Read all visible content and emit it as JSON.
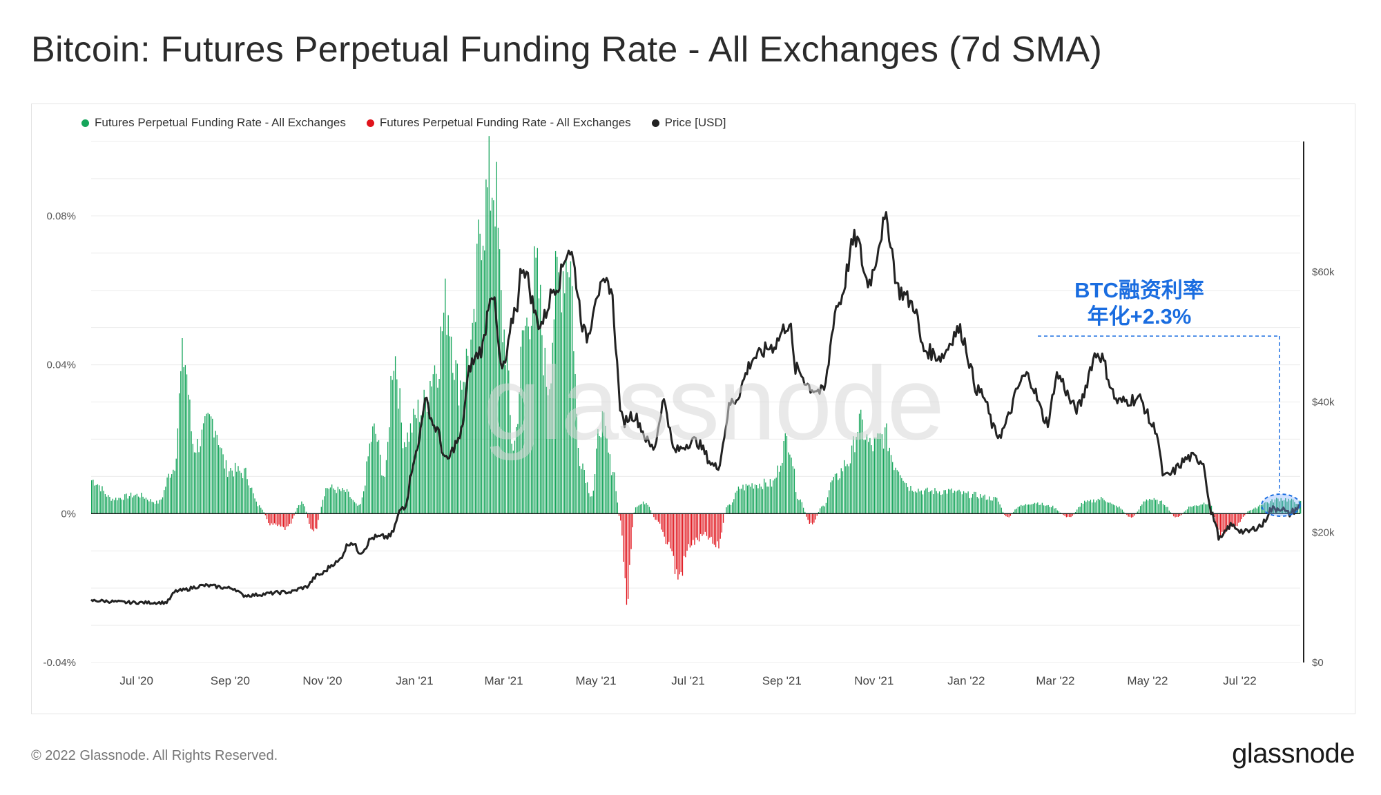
{
  "title": "Bitcoin: Futures Perpetual Funding Rate - All Exchanges (7d SMA)",
  "footer": "© 2022 Glassnode. All Rights Reserved.",
  "brand": "glassnode",
  "watermark": "glassnode",
  "annotation": {
    "line1": "BTC融资利率",
    "line2": "年化+2.3%",
    "color": "#1a6de0"
  },
  "colors": {
    "positive": "#16a55b",
    "negative": "#e0141c",
    "price": "#222222",
    "annotation": "#1a6de0"
  },
  "chart_data": {
    "type": "bar",
    "legend": [
      {
        "name": "Futures Perpetual Funding Rate - All Exchanges",
        "color": "#16a55b"
      },
      {
        "name": "Futures Perpetual Funding Rate - All Exchanges",
        "color": "#e0141c"
      },
      {
        "name": "Price [USD]",
        "color": "#222222"
      }
    ],
    "legend_position": "top-left",
    "y_left": {
      "ticks": [
        "0.08%",
        "0.04%",
        "0%",
        "-0.04%"
      ],
      "tick_values": [
        0.08,
        0.04,
        0,
        -0.04
      ],
      "range": [
        -0.04,
        0.1
      ]
    },
    "y_right": {
      "ticks": [
        "$60k",
        "$40k",
        "$20k",
        "$0"
      ],
      "tick_values": [
        60000,
        40000,
        20000,
        0
      ],
      "range": [
        0,
        80000
      ]
    },
    "x_ticks": [
      "Jul '20",
      "Sep '20",
      "Nov '20",
      "Jan '21",
      "Mar '21",
      "May '21",
      "Jul '21",
      "Sep '21",
      "Nov '21",
      "Jan '22",
      "Mar '22",
      "May '22",
      "Jul '22"
    ],
    "x_range": [
      "2020-06-01",
      "2022-08-10"
    ],
    "grid": true,
    "funding_rate_anchors": [
      {
        "x": "2020-06-01",
        "y": 0.009
      },
      {
        "x": "2020-06-15",
        "y": 0.004
      },
      {
        "x": "2020-07-01",
        "y": 0.005
      },
      {
        "x": "2020-07-15",
        "y": 0.003
      },
      {
        "x": "2020-07-25",
        "y": 0.012
      },
      {
        "x": "2020-08-01",
        "y": 0.042
      },
      {
        "x": "2020-08-08",
        "y": 0.018
      },
      {
        "x": "2020-08-20",
        "y": 0.025
      },
      {
        "x": "2020-08-30",
        "y": 0.012
      },
      {
        "x": "2020-09-10",
        "y": 0.011
      },
      {
        "x": "2020-09-20",
        "y": 0.002
      },
      {
        "x": "2020-09-28",
        "y": -0.003
      },
      {
        "x": "2020-10-08",
        "y": -0.004
      },
      {
        "x": "2020-10-18",
        "y": 0.003
      },
      {
        "x": "2020-10-26",
        "y": -0.005
      },
      {
        "x": "2020-11-04",
        "y": 0.007
      },
      {
        "x": "2020-11-15",
        "y": 0.006
      },
      {
        "x": "2020-11-25",
        "y": 0.002
      },
      {
        "x": "2020-12-05",
        "y": 0.022
      },
      {
        "x": "2020-12-12",
        "y": 0.01
      },
      {
        "x": "2020-12-18",
        "y": 0.043
      },
      {
        "x": "2020-12-25",
        "y": 0.02
      },
      {
        "x": "2021-01-05",
        "y": 0.028
      },
      {
        "x": "2021-01-15",
        "y": 0.04
      },
      {
        "x": "2021-01-22",
        "y": 0.056
      },
      {
        "x": "2021-01-30",
        "y": 0.035
      },
      {
        "x": "2021-02-08",
        "y": 0.045
      },
      {
        "x": "2021-02-14",
        "y": 0.08
      },
      {
        "x": "2021-02-22",
        "y": 0.09
      },
      {
        "x": "2021-03-01",
        "y": 0.048
      },
      {
        "x": "2021-03-07",
        "y": 0.018
      },
      {
        "x": "2021-03-15",
        "y": 0.05
      },
      {
        "x": "2021-03-22",
        "y": 0.063
      },
      {
        "x": "2021-03-30",
        "y": 0.035
      },
      {
        "x": "2021-04-05",
        "y": 0.062
      },
      {
        "x": "2021-04-13",
        "y": 0.07
      },
      {
        "x": "2021-04-20",
        "y": 0.015
      },
      {
        "x": "2021-04-28",
        "y": 0.005
      },
      {
        "x": "2021-05-04",
        "y": 0.025
      },
      {
        "x": "2021-05-12",
        "y": 0.012
      },
      {
        "x": "2021-05-17",
        "y": -0.002
      },
      {
        "x": "2021-05-21",
        "y": -0.023
      },
      {
        "x": "2021-05-27",
        "y": 0.002
      },
      {
        "x": "2021-06-03",
        "y": 0.003
      },
      {
        "x": "2021-06-10",
        "y": -0.002
      },
      {
        "x": "2021-06-18",
        "y": -0.008
      },
      {
        "x": "2021-06-24",
        "y": -0.017
      },
      {
        "x": "2021-07-03",
        "y": -0.008
      },
      {
        "x": "2021-07-12",
        "y": -0.006
      },
      {
        "x": "2021-07-20",
        "y": -0.009
      },
      {
        "x": "2021-07-27",
        "y": 0.002
      },
      {
        "x": "2021-08-05",
        "y": 0.007
      },
      {
        "x": "2021-08-15",
        "y": 0.008
      },
      {
        "x": "2021-08-25",
        "y": 0.008
      },
      {
        "x": "2021-09-05",
        "y": 0.02
      },
      {
        "x": "2021-09-12",
        "y": 0.004
      },
      {
        "x": "2021-09-20",
        "y": -0.003
      },
      {
        "x": "2021-09-28",
        "y": 0.002
      },
      {
        "x": "2021-10-05",
        "y": 0.009
      },
      {
        "x": "2021-10-15",
        "y": 0.014
      },
      {
        "x": "2021-10-22",
        "y": 0.024
      },
      {
        "x": "2021-10-30",
        "y": 0.018
      },
      {
        "x": "2021-11-08",
        "y": 0.021
      },
      {
        "x": "2021-11-15",
        "y": 0.013
      },
      {
        "x": "2021-11-25",
        "y": 0.007
      },
      {
        "x": "2021-12-05",
        "y": 0.006
      },
      {
        "x": "2021-12-20",
        "y": 0.006
      },
      {
        "x": "2022-01-05",
        "y": 0.005
      },
      {
        "x": "2022-01-20",
        "y": 0.004
      },
      {
        "x": "2022-01-28",
        "y": -0.001
      },
      {
        "x": "2022-02-05",
        "y": 0.002
      },
      {
        "x": "2022-02-15",
        "y": 0.003
      },
      {
        "x": "2022-02-25",
        "y": 0.002
      },
      {
        "x": "2022-03-10",
        "y": -0.001
      },
      {
        "x": "2022-03-20",
        "y": 0.003
      },
      {
        "x": "2022-04-01",
        "y": 0.004
      },
      {
        "x": "2022-04-10",
        "y": 0.002
      },
      {
        "x": "2022-04-20",
        "y": -0.001
      },
      {
        "x": "2022-05-01",
        "y": 0.004
      },
      {
        "x": "2022-05-10",
        "y": 0.003
      },
      {
        "x": "2022-05-20",
        "y": -0.001
      },
      {
        "x": "2022-05-30",
        "y": 0.002
      },
      {
        "x": "2022-06-10",
        "y": 0.003
      },
      {
        "x": "2022-06-18",
        "y": -0.005
      },
      {
        "x": "2022-06-28",
        "y": -0.003
      },
      {
        "x": "2022-07-08",
        "y": 0.001
      },
      {
        "x": "2022-07-18",
        "y": 0.003
      },
      {
        "x": "2022-07-28",
        "y": 0.004
      },
      {
        "x": "2022-08-10",
        "y": 0.003
      }
    ],
    "price_anchors": [
      {
        "x": "2020-06-01",
        "y": 9500
      },
      {
        "x": "2020-06-30",
        "y": 9200
      },
      {
        "x": "2020-07-20",
        "y": 9200
      },
      {
        "x": "2020-07-28",
        "y": 11000
      },
      {
        "x": "2020-08-15",
        "y": 11800
      },
      {
        "x": "2020-09-03",
        "y": 11400
      },
      {
        "x": "2020-09-10",
        "y": 10300
      },
      {
        "x": "2020-10-10",
        "y": 10800
      },
      {
        "x": "2020-10-20",
        "y": 11500
      },
      {
        "x": "2020-10-30",
        "y": 13500
      },
      {
        "x": "2020-11-10",
        "y": 15300
      },
      {
        "x": "2020-11-20",
        "y": 18500
      },
      {
        "x": "2020-11-26",
        "y": 17000
      },
      {
        "x": "2020-12-05",
        "y": 19200
      },
      {
        "x": "2020-12-15",
        "y": 19300
      },
      {
        "x": "2020-12-25",
        "y": 24000
      },
      {
        "x": "2021-01-02",
        "y": 32000
      },
      {
        "x": "2021-01-08",
        "y": 40000
      },
      {
        "x": "2021-01-15",
        "y": 36000
      },
      {
        "x": "2021-01-22",
        "y": 31000
      },
      {
        "x": "2021-01-30",
        "y": 34000
      },
      {
        "x": "2021-02-08",
        "y": 46000
      },
      {
        "x": "2021-02-14",
        "y": 48000
      },
      {
        "x": "2021-02-21",
        "y": 57000
      },
      {
        "x": "2021-02-28",
        "y": 45000
      },
      {
        "x": "2021-03-10",
        "y": 55000
      },
      {
        "x": "2021-03-13",
        "y": 61000
      },
      {
        "x": "2021-03-25",
        "y": 52000
      },
      {
        "x": "2021-04-05",
        "y": 58000
      },
      {
        "x": "2021-04-13",
        "y": 63500
      },
      {
        "x": "2021-04-25",
        "y": 50000
      },
      {
        "x": "2021-05-02",
        "y": 57000
      },
      {
        "x": "2021-05-10",
        "y": 58000
      },
      {
        "x": "2021-05-19",
        "y": 37000
      },
      {
        "x": "2021-05-25",
        "y": 38000
      },
      {
        "x": "2021-06-08",
        "y": 33000
      },
      {
        "x": "2021-06-15",
        "y": 40000
      },
      {
        "x": "2021-06-22",
        "y": 32500
      },
      {
        "x": "2021-07-05",
        "y": 34000
      },
      {
        "x": "2021-07-20",
        "y": 30000
      },
      {
        "x": "2021-07-30",
        "y": 40000
      },
      {
        "x": "2021-08-15",
        "y": 47000
      },
      {
        "x": "2021-08-25",
        "y": 48500
      },
      {
        "x": "2021-09-06",
        "y": 52000
      },
      {
        "x": "2021-09-10",
        "y": 45000
      },
      {
        "x": "2021-09-22",
        "y": 42000
      },
      {
        "x": "2021-09-28",
        "y": 41500
      },
      {
        "x": "2021-10-08",
        "y": 55000
      },
      {
        "x": "2021-10-20",
        "y": 65000
      },
      {
        "x": "2021-10-28",
        "y": 58500
      },
      {
        "x": "2021-11-09",
        "y": 67500
      },
      {
        "x": "2021-11-18",
        "y": 57000
      },
      {
        "x": "2021-11-27",
        "y": 55000
      },
      {
        "x": "2021-12-04",
        "y": 48000
      },
      {
        "x": "2021-12-15",
        "y": 47000
      },
      {
        "x": "2021-12-27",
        "y": 51000
      },
      {
        "x": "2022-01-10",
        "y": 41500
      },
      {
        "x": "2022-01-22",
        "y": 35000
      },
      {
        "x": "2022-02-10",
        "y": 44000
      },
      {
        "x": "2022-02-24",
        "y": 37000
      },
      {
        "x": "2022-03-02",
        "y": 44000
      },
      {
        "x": "2022-03-15",
        "y": 39000
      },
      {
        "x": "2022-03-29",
        "y": 47500
      },
      {
        "x": "2022-04-12",
        "y": 40000
      },
      {
        "x": "2022-04-25",
        "y": 40500
      },
      {
        "x": "2022-05-06",
        "y": 36000
      },
      {
        "x": "2022-05-12",
        "y": 28500
      },
      {
        "x": "2022-05-30",
        "y": 31500
      },
      {
        "x": "2022-06-06",
        "y": 31000
      },
      {
        "x": "2022-06-13",
        "y": 22500
      },
      {
        "x": "2022-06-18",
        "y": 19000
      },
      {
        "x": "2022-06-25",
        "y": 21000
      },
      {
        "x": "2022-07-05",
        "y": 20000
      },
      {
        "x": "2022-07-15",
        "y": 21000
      },
      {
        "x": "2022-07-22",
        "y": 23500
      },
      {
        "x": "2022-07-28",
        "y": 23800
      },
      {
        "x": "2022-08-02",
        "y": 22800
      },
      {
        "x": "2022-08-10",
        "y": 23900
      }
    ]
  }
}
